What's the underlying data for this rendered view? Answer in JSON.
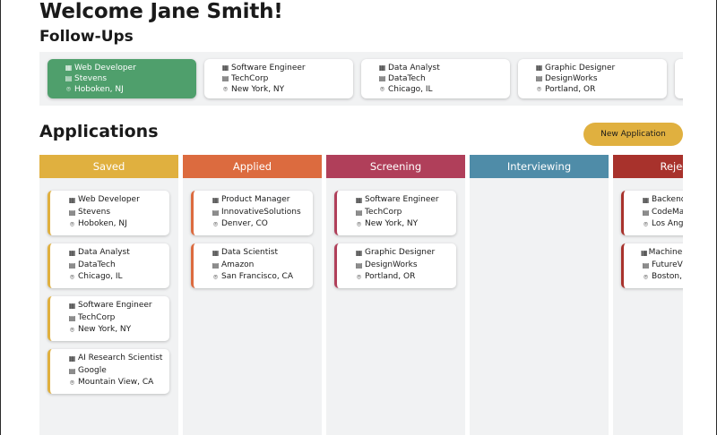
{
  "welcome": "Welcome Jane Smith!",
  "followups_title": "Follow-Ups",
  "applications_title": "Applications",
  "new_application_label": "New Application",
  "icons": {
    "role": "building-icon",
    "company": "office-icon",
    "location": "location-pin-icon"
  },
  "followups": [
    {
      "role": "Web Developer",
      "company": "Stevens",
      "location": "Hoboken, NJ",
      "active": true
    },
    {
      "role": "Software Engineer",
      "company": "TechCorp",
      "location": "New York, NY",
      "active": false
    },
    {
      "role": "Data Analyst",
      "company": "DataTech",
      "location": "Chicago, IL",
      "active": false
    },
    {
      "role": "Graphic Designer",
      "company": "DesignWorks",
      "location": "Portland, OR",
      "active": false
    }
  ],
  "columns": [
    {
      "title": "Saved",
      "color": "#e0b03f",
      "cards": [
        {
          "role": "Web Developer",
          "company": "Stevens",
          "location": "Hoboken, NJ"
        },
        {
          "role": "Data Analyst",
          "company": "DataTech",
          "location": "Chicago, IL"
        },
        {
          "role": "Software Engineer",
          "company": "TechCorp",
          "location": "New York, NY"
        },
        {
          "role": "AI Research Scientist",
          "company": "Google",
          "location": "Mountain View, CA"
        }
      ]
    },
    {
      "title": "Applied",
      "color": "#dc6b3f",
      "cards": [
        {
          "role": "Product Manager",
          "company": "InnovativeSolutions",
          "location": "Denver, CO"
        },
        {
          "role": "Data Scientist",
          "company": "Amazon",
          "location": "San Francisco, CA"
        }
      ]
    },
    {
      "title": "Screening",
      "color": "#b03f5a",
      "cards": [
        {
          "role": "Software Engineer",
          "company": "TechCorp",
          "location": "New York, NY"
        },
        {
          "role": "Graphic Designer",
          "company": "DesignWorks",
          "location": "Portland, OR"
        }
      ]
    },
    {
      "title": "Interviewing",
      "color": "#4f8ca8",
      "cards": []
    },
    {
      "title": "Rejected",
      "color": "#a8322c",
      "cards": [
        {
          "role": "Backend Developer",
          "company": "CodeMasters",
          "location": "Los Angeles, CA"
        },
        {
          "role": "Machine Learning Engineer",
          "company": "FutureVision",
          "location": "Boston, MA"
        }
      ]
    }
  ]
}
